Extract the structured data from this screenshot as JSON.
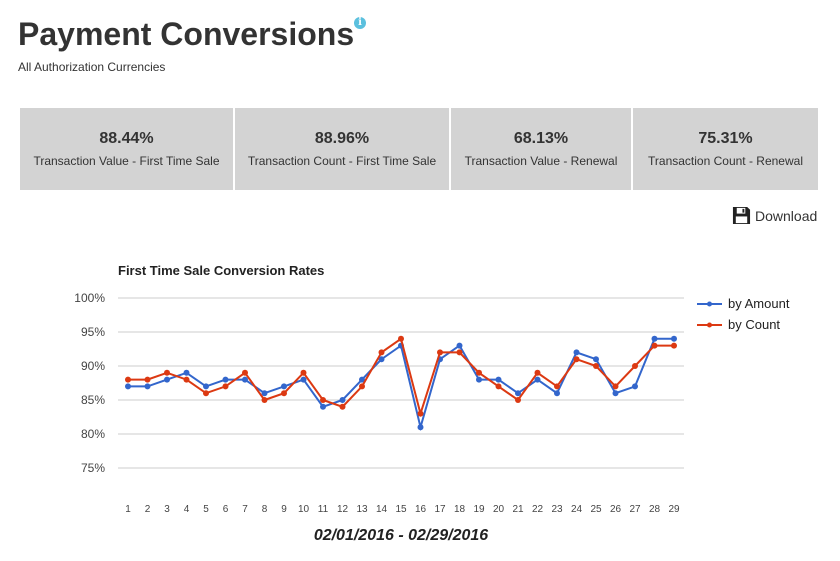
{
  "header": {
    "title": "Payment Conversions",
    "info_icon": "i",
    "subtitle": "All Authorization Currencies"
  },
  "stats": [
    {
      "value": "88.44%",
      "label": "Transaction Value - First Time Sale"
    },
    {
      "value": "88.96%",
      "label": "Transaction Count - First Time Sale"
    },
    {
      "value": "68.13%",
      "label": "Transaction Value - Renewal"
    },
    {
      "value": "75.31%",
      "label": "Transaction Count - Renewal"
    }
  ],
  "download_label": "Download",
  "colors": {
    "amount": "#3366cc",
    "count": "#dc3912",
    "stat_bg": "#d3d3d3"
  },
  "chart_data": {
    "type": "line",
    "title": "First Time Sale Conversion Rates",
    "xlabel": "02/01/2016 - 02/29/2016",
    "ylabel": "",
    "ylim": [
      75,
      100
    ],
    "yticks": [
      "100%",
      "95%",
      "90%",
      "85%",
      "80%",
      "75%"
    ],
    "ytick_values": [
      100,
      95,
      90,
      85,
      80,
      75
    ],
    "x": [
      1,
      2,
      3,
      4,
      5,
      6,
      7,
      8,
      9,
      10,
      11,
      12,
      13,
      14,
      15,
      16,
      17,
      18,
      19,
      20,
      21,
      22,
      23,
      24,
      25,
      26,
      27,
      28,
      29
    ],
    "legend_position": "right",
    "grid": true,
    "series": [
      {
        "name": "by Amount",
        "values": [
          87,
          87,
          88,
          89,
          87,
          88,
          88,
          86,
          87,
          88,
          84,
          85,
          88,
          91,
          93,
          81,
          91,
          93,
          88,
          88,
          86,
          88,
          86,
          92,
          91,
          86,
          87,
          94,
          94
        ]
      },
      {
        "name": "by Count",
        "values": [
          88,
          88,
          89,
          88,
          86,
          87,
          89,
          85,
          86,
          89,
          85,
          84,
          87,
          92,
          94,
          83,
          92,
          92,
          89,
          87,
          85,
          89,
          87,
          91,
          90,
          87,
          90,
          93,
          93
        ]
      }
    ]
  }
}
